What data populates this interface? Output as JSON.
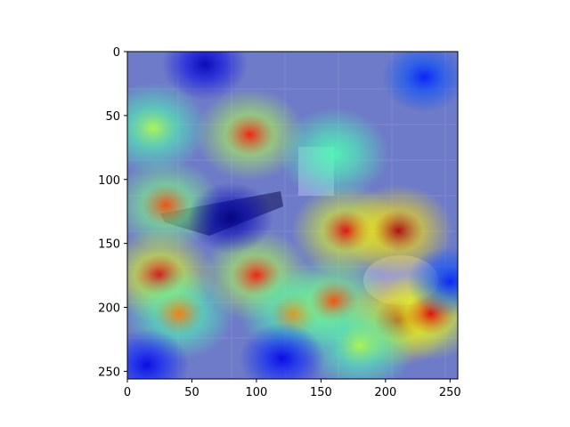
{
  "chart_data": {
    "type": "heatmap",
    "title": "",
    "xlabel": "",
    "ylabel": "",
    "description_overlay": "jet",
    "xlim": [
      0,
      256
    ],
    "ylim": [
      256,
      0
    ],
    "x_ticks": [
      0,
      50,
      100,
      150,
      200,
      250
    ],
    "y_ticks": [
      0,
      50,
      100,
      150,
      200,
      250
    ],
    "hotspots": [
      {
        "x": 95,
        "y": 65,
        "intensity": 0.85
      },
      {
        "x": 30,
        "y": 120,
        "intensity": 0.8
      },
      {
        "x": 25,
        "y": 175,
        "intensity": 0.9
      },
      {
        "x": 40,
        "y": 205,
        "intensity": 0.75
      },
      {
        "x": 100,
        "y": 175,
        "intensity": 0.85
      },
      {
        "x": 130,
        "y": 205,
        "intensity": 0.75
      },
      {
        "x": 170,
        "y": 140,
        "intensity": 0.9
      },
      {
        "x": 210,
        "y": 140,
        "intensity": 0.95
      },
      {
        "x": 160,
        "y": 195,
        "intensity": 0.8
      },
      {
        "x": 210,
        "y": 210,
        "intensity": 0.95
      },
      {
        "x": 235,
        "y": 205,
        "intensity": 0.9
      },
      {
        "x": 180,
        "y": 230,
        "intensity": 0.55
      },
      {
        "x": 20,
        "y": 60,
        "intensity": 0.55
      },
      {
        "x": 160,
        "y": 80,
        "intensity": 0.45
      }
    ],
    "coldspots": [
      {
        "x": 80,
        "y": 130,
        "intensity": 0.0
      },
      {
        "x": 60,
        "y": 10,
        "intensity": 0.05
      },
      {
        "x": 230,
        "y": 20,
        "intensity": 0.15
      },
      {
        "x": 120,
        "y": 240,
        "intensity": 0.1
      },
      {
        "x": 15,
        "y": 245,
        "intensity": 0.1
      },
      {
        "x": 250,
        "y": 180,
        "intensity": 0.15
      }
    ]
  }
}
